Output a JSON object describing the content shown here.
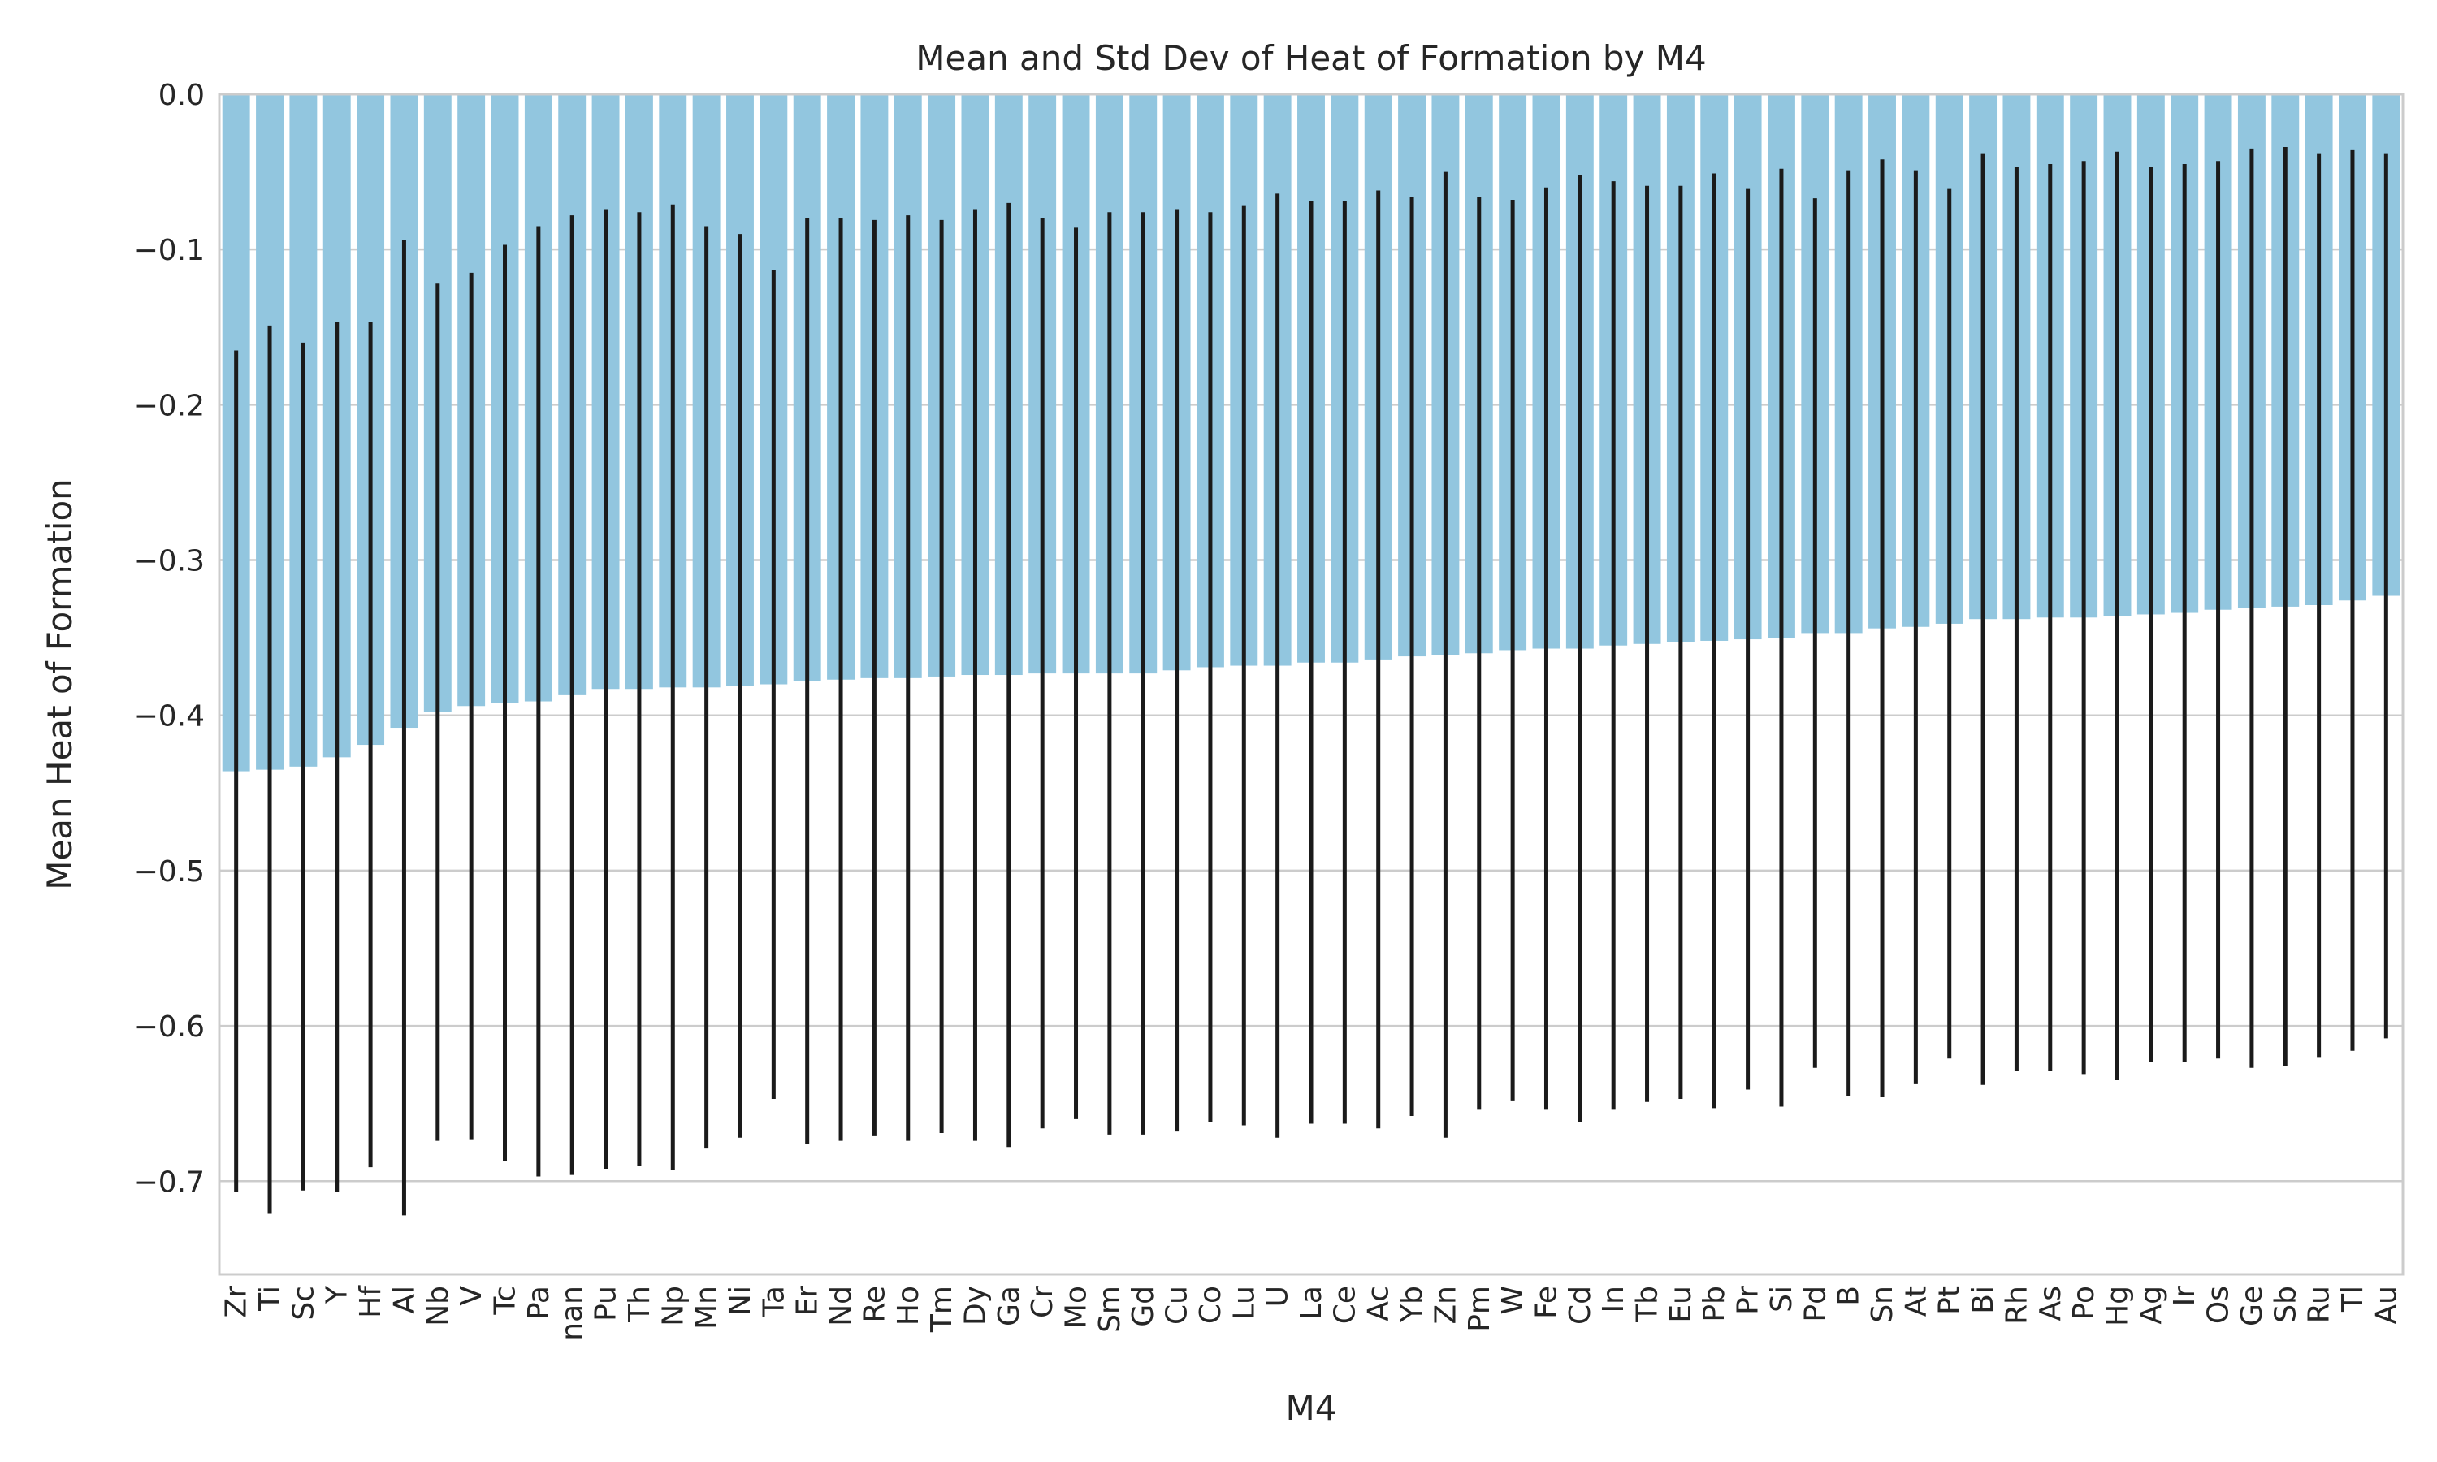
{
  "chart_data": {
    "type": "bar",
    "title": "Mean and Std Dev of Heat of Formation by M4",
    "xlabel": "M4",
    "ylabel": "Mean Heat of Formation",
    "ylim": [
      -0.76,
      0.0
    ],
    "yticks": [
      0.0,
      -0.1,
      -0.2,
      -0.3,
      -0.4,
      -0.5,
      -0.6,
      -0.7
    ],
    "ytick_labels": [
      "0.0",
      "−0.1",
      "−0.2",
      "−0.3",
      "−0.4",
      "−0.5",
      "−0.6",
      "−0.7"
    ],
    "grid": "horizontal",
    "bar_color": "#92c6df",
    "errorbar_color": "#1a1a1a",
    "categories": [
      "Zr",
      "Ti",
      "Sc",
      "Y",
      "Hf",
      "Al",
      "Nb",
      "V",
      "Tc",
      "Pa",
      "nan",
      "Pu",
      "Th",
      "Np",
      "Mn",
      "Ni",
      "Ta",
      "Er",
      "Nd",
      "Re",
      "Ho",
      "Tm",
      "Dy",
      "Ga",
      "Cr",
      "Mo",
      "Sm",
      "Gd",
      "Cu",
      "Co",
      "Lu",
      "U",
      "La",
      "Ce",
      "Ac",
      "Yb",
      "Zn",
      "Pm",
      "W",
      "Fe",
      "Cd",
      "In",
      "Tb",
      "Eu",
      "Pb",
      "Pr",
      "Si",
      "Pd",
      "B",
      "Sn",
      "At",
      "Pt",
      "Bi",
      "Rh",
      "As",
      "Po",
      "Hg",
      "Ag",
      "Ir",
      "Os",
      "Ge",
      "Sb",
      "Ru",
      "Tl",
      "Au"
    ],
    "values": [
      -0.436,
      -0.435,
      -0.433,
      -0.427,
      -0.419,
      -0.408,
      -0.398,
      -0.394,
      -0.392,
      -0.391,
      -0.387,
      -0.383,
      -0.383,
      -0.382,
      -0.382,
      -0.381,
      -0.38,
      -0.378,
      -0.377,
      -0.376,
      -0.376,
      -0.375,
      -0.374,
      -0.374,
      -0.373,
      -0.373,
      -0.373,
      -0.373,
      -0.371,
      -0.369,
      -0.368,
      -0.368,
      -0.366,
      -0.366,
      -0.364,
      -0.362,
      -0.361,
      -0.36,
      -0.358,
      -0.357,
      -0.357,
      -0.355,
      -0.354,
      -0.353,
      -0.352,
      -0.351,
      -0.35,
      -0.347,
      -0.347,
      -0.344,
      -0.343,
      -0.341,
      -0.338,
      -0.338,
      -0.337,
      -0.337,
      -0.336,
      -0.335,
      -0.334,
      -0.332,
      -0.331,
      -0.33,
      -0.329,
      -0.326,
      -0.323
    ],
    "std": [
      0.271,
      0.286,
      0.273,
      0.28,
      0.272,
      0.314,
      0.276,
      0.279,
      0.295,
      0.306,
      0.309,
      0.309,
      0.307,
      0.311,
      0.297,
      0.291,
      0.267,
      0.298,
      0.297,
      0.295,
      0.298,
      0.294,
      0.3,
      0.304,
      0.293,
      0.287,
      0.297,
      0.297,
      0.297,
      0.293,
      0.296,
      0.304,
      0.297,
      0.297,
      0.302,
      0.296,
      0.311,
      0.294,
      0.29,
      0.297,
      0.305,
      0.299,
      0.295,
      0.294,
      0.301,
      0.29,
      0.302,
      0.28,
      0.298,
      0.302,
      0.294,
      0.28,
      0.3,
      0.291,
      0.292,
      0.294,
      0.299,
      0.288,
      0.289,
      0.289,
      0.296,
      0.296,
      0.291,
      0.29,
      0.285
    ]
  }
}
